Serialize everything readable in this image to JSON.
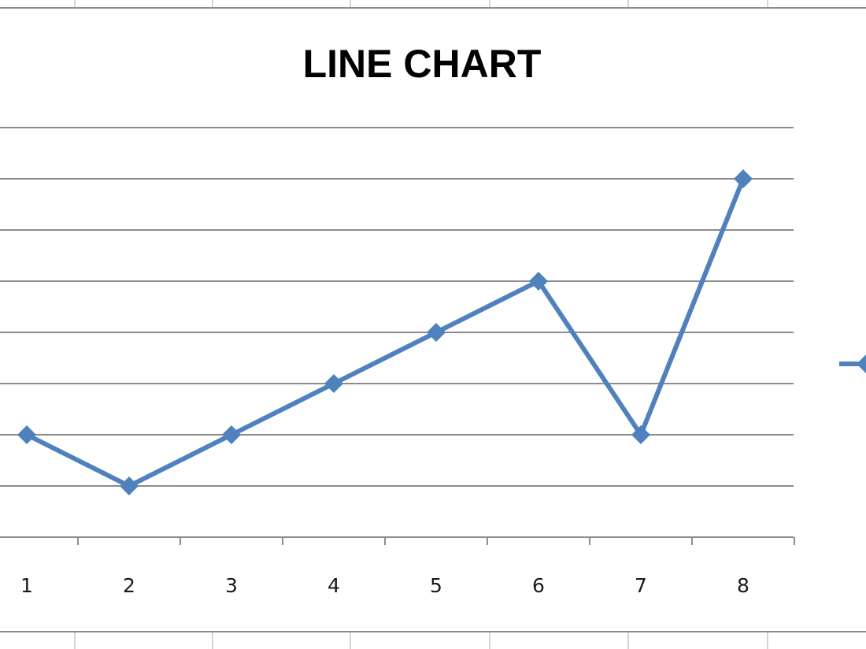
{
  "chart_data": {
    "type": "line",
    "title": "LINE CHART",
    "xlabel": "",
    "ylabel": "",
    "categories": [
      "1",
      "2",
      "3",
      "4",
      "5",
      "6",
      "7",
      "8"
    ],
    "series": [
      {
        "values": [
          2,
          1,
          2,
          3,
          4,
          5,
          2,
          7
        ]
      }
    ],
    "ylim": [
      0,
      8
    ],
    "grid": true,
    "legend": "right",
    "colors": {
      "series": "#4f81bd",
      "gridline": "#8c8c8c",
      "axis": "#8c8c8c",
      "sheet_gridline": "#d4d4d4",
      "frame": "#8c8c8c"
    }
  }
}
